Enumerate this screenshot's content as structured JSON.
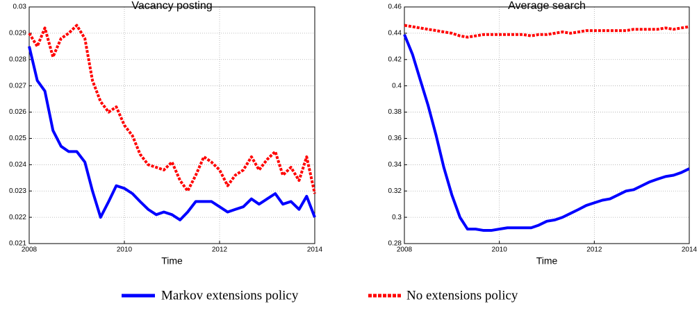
{
  "chart_data": [
    {
      "type": "line",
      "title": "Vacancy posting",
      "x_label": "Time",
      "x": [
        2008,
        2008.17,
        2008.33,
        2008.5,
        2008.67,
        2008.83,
        2009,
        2009.17,
        2009.33,
        2009.5,
        2009.67,
        2009.83,
        2010,
        2010.17,
        2010.33,
        2010.5,
        2010.67,
        2010.83,
        2011,
        2011.17,
        2011.33,
        2011.5,
        2011.67,
        2011.83,
        2012,
        2012.17,
        2012.33,
        2012.5,
        2012.67,
        2012.83,
        2013,
        2013.17,
        2013.33,
        2013.5,
        2013.67,
        2013.83,
        2014
      ],
      "series": [
        {
          "name": "Markov extensions policy",
          "color": "#0000ff",
          "line_style": "solid",
          "values": [
            0.0285,
            0.0272,
            0.0268,
            0.0253,
            0.0247,
            0.0245,
            0.0245,
            0.0241,
            0.023,
            0.022,
            0.0226,
            0.0232,
            0.0231,
            0.0229,
            0.0226,
            0.0223,
            0.0221,
            0.0222,
            0.0221,
            0.0219,
            0.0222,
            0.0226,
            0.0226,
            0.0226,
            0.0224,
            0.0222,
            0.0223,
            0.0224,
            0.0227,
            0.0225,
            0.0227,
            0.0229,
            0.0225,
            0.0226,
            0.0223,
            0.0228,
            0.022
          ]
        },
        {
          "name": "No extensions policy",
          "color": "#ff0000",
          "line_style": "dashed",
          "values": [
            0.029,
            0.0285,
            0.0292,
            0.0281,
            0.0288,
            0.029,
            0.0293,
            0.0288,
            0.0272,
            0.0264,
            0.026,
            0.0262,
            0.0255,
            0.0251,
            0.0244,
            0.024,
            0.0239,
            0.0238,
            0.0241,
            0.0234,
            0.023,
            0.0236,
            0.0243,
            0.0241,
            0.0238,
            0.0232,
            0.0236,
            0.0238,
            0.0243,
            0.0238,
            0.0242,
            0.0245,
            0.0236,
            0.0239,
            0.0234,
            0.0243,
            0.0229
          ]
        }
      ],
      "xlim": [
        2008,
        2014
      ],
      "xticks": [
        2008,
        2010,
        2012,
        2014
      ],
      "ylim": [
        0.021,
        0.03
      ],
      "yticks": [
        0.021,
        0.022,
        0.023,
        0.024,
        0.025,
        0.026,
        0.027,
        0.028,
        0.029,
        0.03
      ],
      "grid": true
    },
    {
      "type": "line",
      "title": "Average search",
      "x_label": "Time",
      "x": [
        2008,
        2008.17,
        2008.33,
        2008.5,
        2008.67,
        2008.83,
        2009,
        2009.17,
        2009.33,
        2009.5,
        2009.67,
        2009.83,
        2010,
        2010.17,
        2010.33,
        2010.5,
        2010.67,
        2010.83,
        2011,
        2011.17,
        2011.33,
        2011.5,
        2011.67,
        2011.83,
        2012,
        2012.17,
        2012.33,
        2012.5,
        2012.67,
        2012.83,
        2013,
        2013.17,
        2013.33,
        2013.5,
        2013.67,
        2013.83,
        2014
      ],
      "series": [
        {
          "color": "#0000ff",
          "line_style": "solid",
          "values": [
            0.439,
            0.424,
            0.405,
            0.385,
            0.362,
            0.338,
            0.317,
            0.3,
            0.291,
            0.291,
            0.29,
            0.29,
            0.291,
            0.292,
            0.292,
            0.292,
            0.292,
            0.294,
            0.297,
            0.298,
            0.3,
            0.303,
            0.306,
            0.309,
            0.311,
            0.313,
            0.314,
            0.317,
            0.32,
            0.321,
            0.324,
            0.327,
            0.329,
            0.331,
            0.332,
            0.334,
            0.337
          ]
        },
        {
          "color": "#ff0000",
          "line_style": "dashed",
          "values": [
            0.446,
            0.445,
            0.444,
            0.443,
            0.442,
            0.441,
            0.44,
            0.438,
            0.437,
            0.438,
            0.439,
            0.439,
            0.439,
            0.439,
            0.439,
            0.439,
            0.438,
            0.439,
            0.439,
            0.44,
            0.441,
            0.44,
            0.441,
            0.442,
            0.442,
            0.442,
            0.442,
            0.442,
            0.442,
            0.443,
            0.443,
            0.443,
            0.443,
            0.444,
            0.443,
            0.444,
            0.445
          ]
        }
      ],
      "xlim": [
        2008,
        2014
      ],
      "xticks": [
        2008,
        2010,
        2012,
        2014
      ],
      "ylim": [
        0.28,
        0.46
      ],
      "yticks": [
        0.28,
        0.3,
        0.32,
        0.34,
        0.36,
        0.38,
        0.4,
        0.42,
        0.44,
        0.46
      ],
      "grid": true
    }
  ]
}
